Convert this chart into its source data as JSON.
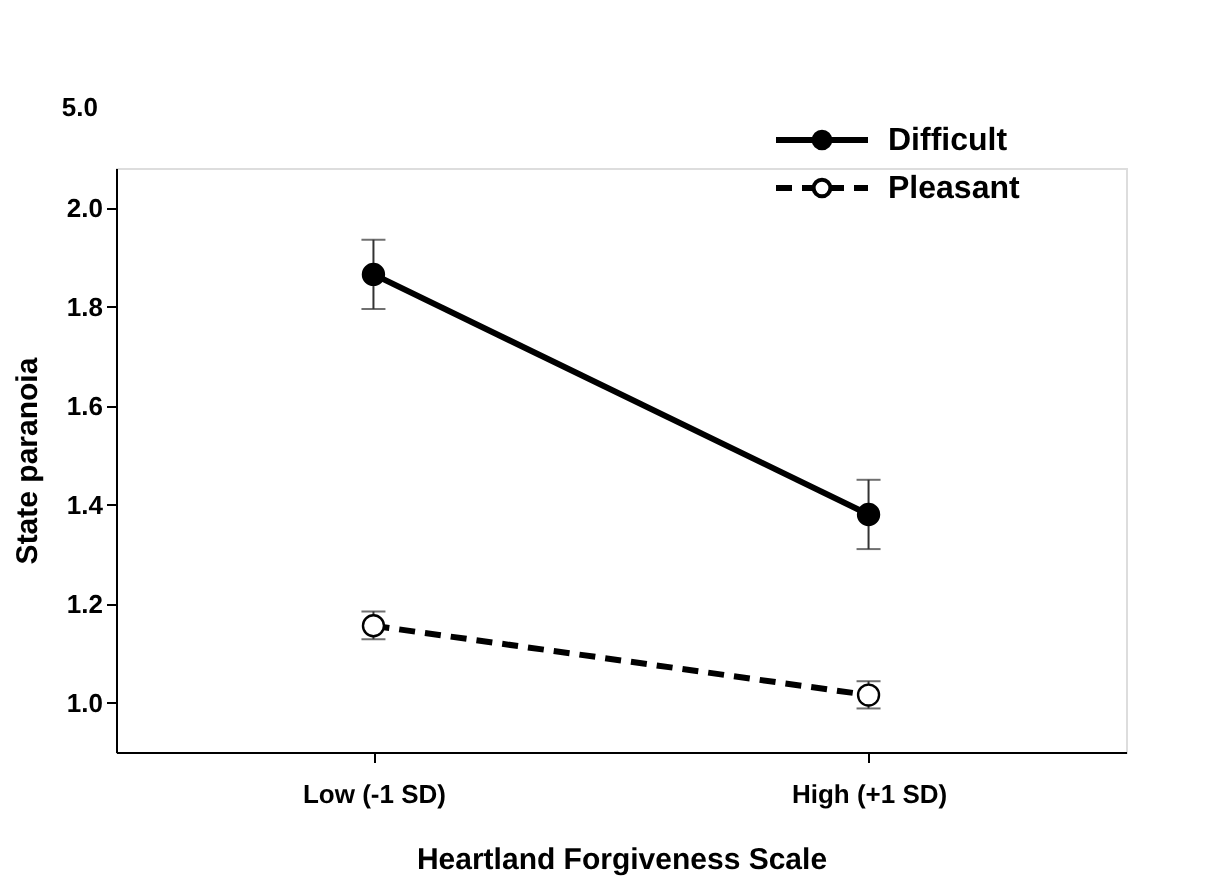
{
  "chart_data": {
    "type": "line",
    "xlabel": "Heartland Forgiveness Scale",
    "ylabel": "State paranoia",
    "categories": [
      "Low (-1 SD)",
      "High (+1 SD)"
    ],
    "series": [
      {
        "name": "Difficult",
        "color": "#000000",
        "colors": [
          "#000000",
          "#000000"
        ],
        "line_style": "solid",
        "values": [
          1.865,
          1.38
        ],
        "errors": [
          [
            1.795,
            1.935
          ],
          [
            1.31,
            1.45
          ]
        ]
      },
      {
        "name": "Pleasant",
        "color": "#000000",
        "colors": [
          "#ffffff",
          "#ffffff"
        ],
        "line_style": "dashed",
        "values": [
          1.155,
          1.015
        ],
        "errors": [
          [
            1.128,
            1.184
          ],
          [
            0.988,
            1.043
          ]
        ]
      }
    ],
    "ylim": [
      0.9,
      2.08
    ],
    "yticks": [
      {
        "value": 1.0,
        "label": "1.0"
      },
      {
        "value": 1.2,
        "label": "1.2"
      },
      {
        "value": 1.4,
        "label": "1.4"
      },
      {
        "value": 1.6,
        "label": "1.6"
      },
      {
        "value": 1.8,
        "label": "1.8"
      },
      {
        "value": 2.0,
        "label": "2.0"
      }
    ],
    "annotations": [
      "5.0"
    ],
    "marker": "circle",
    "legend": "top right",
    "grid": false
  }
}
